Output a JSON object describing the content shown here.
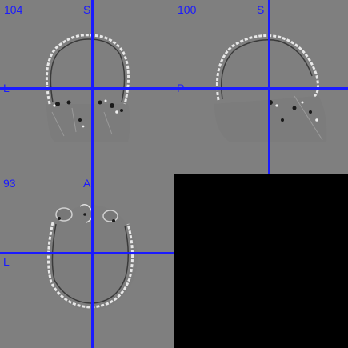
{
  "viewer": {
    "crosshair_color": "#1a1aff",
    "background_color": "#7f7f7f"
  },
  "panes": {
    "coronal": {
      "slice": "104",
      "top_label": "S",
      "left_label": "L"
    },
    "sagittal": {
      "slice": "100",
      "top_label": "S",
      "left_label": "P"
    },
    "axial": {
      "slice": "93",
      "top_label": "A",
      "left_label": "L"
    }
  }
}
